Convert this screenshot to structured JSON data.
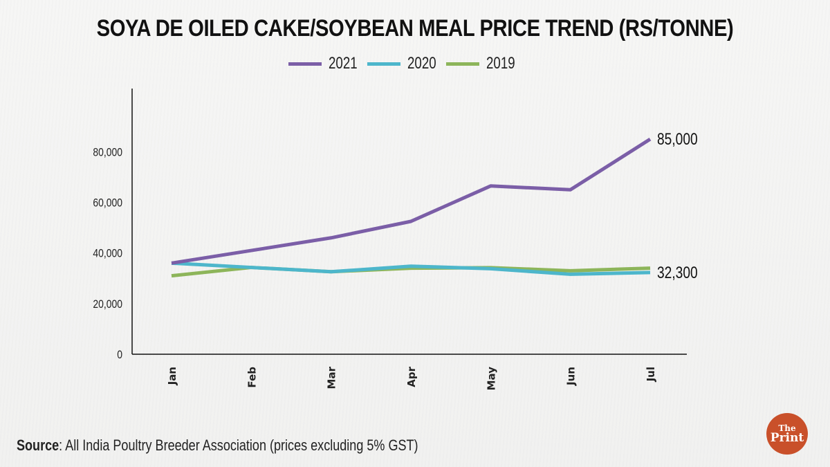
{
  "title": "SOYA DE OILED CAKE/SOYBEAN MEAL PRICE TREND (RS/TONNE)",
  "source": {
    "prefix": "Source",
    "text": ": All India Poultry Breeder Association (prices excluding 5% GST)"
  },
  "logo": {
    "line1": "The",
    "line2": "Print",
    "color": "#c9502a"
  },
  "chart_data": {
    "type": "line",
    "title": "SOYA DE OILED CAKE/SOYBEAN MEAL PRICE TREND (RS/TONNE)",
    "xlabel": "",
    "ylabel": "",
    "categories": [
      "Jan",
      "Feb",
      "Mar",
      "Apr",
      "May",
      "Jun",
      "Jul"
    ],
    "ylim": [
      0,
      105000
    ],
    "yticks": [
      0,
      20000,
      40000,
      60000,
      80000
    ],
    "ytick_labels": [
      "0",
      "20,000",
      "40,000",
      "60,000",
      "80,000"
    ],
    "grid": false,
    "legend_position": "top-center",
    "series": [
      {
        "name": "2021",
        "color": "#7b5ea7",
        "values": [
          36000,
          41000,
          46000,
          52500,
          66500,
          65000,
          85000
        ]
      },
      {
        "name": "2020",
        "color": "#4db6cb",
        "values": [
          36000,
          34300,
          32600,
          34800,
          33800,
          31600,
          32300
        ]
      },
      {
        "name": "2019",
        "color": "#8db55a",
        "values": [
          31000,
          34300,
          32600,
          34000,
          34200,
          33000,
          34000
        ]
      }
    ],
    "annotations": [
      {
        "series": "2021",
        "category": "Jul",
        "text": "85,000"
      },
      {
        "series": "2020",
        "category": "Jul",
        "text": "32,300"
      }
    ]
  }
}
